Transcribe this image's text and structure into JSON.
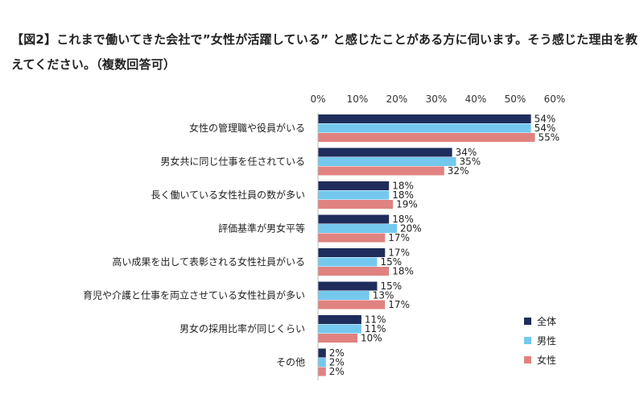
{
  "title": "【図2】これまで働いてきた会社で”女性が活躍している” と感じたことがある方に伺います。そう感じた理由を教えてください。（複数回答可）",
  "chart_data": {
    "type": "bar",
    "orientation": "horizontal",
    "categories": [
      "女性の管理職や役員がいる",
      "男女共に同じ仕事を任されている",
      "長く働いている女性社員の数が多い",
      "評価基準が男女平等",
      "高い成果を出して表彰される女性社員がいる",
      "育児や介護と仕事を両立させている女性社員が多い",
      "男女の採用比率が同じくらい",
      "その他"
    ],
    "series": [
      {
        "name": "全体",
        "color": "#1f2d5c",
        "values": [
          54,
          34,
          18,
          18,
          17,
          15,
          11,
          2
        ]
      },
      {
        "name": "男性",
        "color": "#74c8ee",
        "values": [
          54,
          35,
          18,
          20,
          15,
          13,
          11,
          2
        ]
      },
      {
        "name": "女性",
        "color": "#e08280",
        "values": [
          55,
          32,
          19,
          17,
          18,
          17,
          10,
          2
        ]
      }
    ],
    "xlim": [
      0,
      60
    ],
    "xticks": [
      0,
      10,
      20,
      30,
      40,
      50,
      60
    ],
    "tick_suffix": "%",
    "value_suffix": "%",
    "legend_position": "bottom-right",
    "grid": false
  }
}
